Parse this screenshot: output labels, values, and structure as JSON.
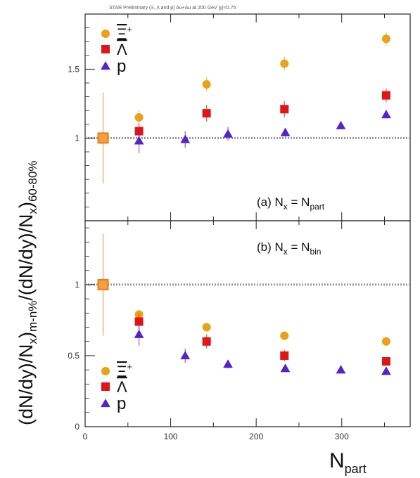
{
  "header": "STAR Preliminary (Ξ, Λ and p) Au+Au at 200 GeV |y|<0.75",
  "chart_data": [
    {
      "type": "scatter",
      "panel": "a",
      "label_main": "(a)  N",
      "label_sub1": "x",
      "label_eq": " = N",
      "label_sub2": "part",
      "ylim": [
        0.4,
        1.9
      ],
      "xlim": [
        0,
        380
      ],
      "y_ticks": [
        "1",
        "1.5"
      ],
      "y_tick_values": [
        1,
        1.5
      ],
      "reference_line": 1,
      "legend": {
        "xi": {
          "main": "Ξ",
          "sup": "+"
        },
        "lambda": {
          "main": "Λ"
        },
        "p": {
          "main": "p"
        }
      },
      "series": [
        {
          "key": "xi",
          "color": "#e8a317",
          "marker": "circle",
          "x": [
            63,
            142,
            233,
            352
          ],
          "y": [
            1.15,
            1.39,
            1.54,
            1.72
          ],
          "err": [
            0.05,
            0.05,
            0.05,
            0.05
          ]
        },
        {
          "key": "lambda",
          "color": "#e01515",
          "marker": "square",
          "x": [
            63,
            142,
            233,
            352
          ],
          "y": [
            1.05,
            1.18,
            1.21,
            1.31
          ],
          "err": [
            0.06,
            0.06,
            0.06,
            0.05
          ]
        },
        {
          "key": "p",
          "color": "#5522cc",
          "marker": "triangle",
          "x": [
            63,
            117,
            167,
            234,
            299,
            352
          ],
          "y": [
            0.98,
            0.99,
            1.03,
            1.04,
            1.09,
            1.17
          ],
          "err": [
            0.09,
            0.06,
            0.05,
            0.03,
            0.02,
            0.02
          ]
        },
        {
          "key": "ref",
          "color": "#e87c1a",
          "marker": "open-square",
          "x": [
            21
          ],
          "y": [
            1.0
          ],
          "err": [
            0.33
          ]
        }
      ]
    },
    {
      "type": "scatter",
      "panel": "b",
      "label_main": "(b)  N",
      "label_sub1": "x",
      "label_eq": " = N",
      "label_sub2": "bin",
      "ylim": [
        0,
        1.45
      ],
      "xlim": [
        0,
        380
      ],
      "x_ticks": [
        "0",
        "100",
        "200",
        "300"
      ],
      "x_tick_values": [
        0,
        100,
        200,
        300
      ],
      "y_ticks": [
        "0",
        "0.5",
        "1"
      ],
      "y_tick_values": [
        0,
        0.5,
        1
      ],
      "reference_line": 1,
      "legend": {
        "xi": {
          "main": "Ξ",
          "sup": "+"
        },
        "lambda": {
          "main": "Λ"
        },
        "p": {
          "main": "p"
        }
      },
      "series": [
        {
          "key": "xi",
          "color": "#e8a317",
          "marker": "circle",
          "x": [
            63,
            142,
            233,
            352
          ],
          "y": [
            0.79,
            0.7,
            0.64,
            0.6
          ],
          "err": [
            0.03,
            0.03,
            0.03,
            0.03
          ]
        },
        {
          "key": "lambda",
          "color": "#e01515",
          "marker": "square",
          "x": [
            63,
            142,
            233,
            352
          ],
          "y": [
            0.74,
            0.6,
            0.5,
            0.46
          ],
          "err": [
            0.06,
            0.05,
            0.04,
            0.03
          ]
        },
        {
          "key": "p",
          "color": "#5522cc",
          "marker": "triangle",
          "x": [
            63,
            117,
            167,
            234,
            299,
            352
          ],
          "y": [
            0.65,
            0.5,
            0.44,
            0.41,
            0.4,
            0.39
          ],
          "err": [
            0.08,
            0.05,
            0.03,
            0.02,
            0.02,
            0.02
          ]
        },
        {
          "key": "ref",
          "color": "#e87c1a",
          "marker": "open-square",
          "x": [
            21
          ],
          "y": [
            1.0
          ],
          "err": [
            0.36
          ]
        }
      ]
    }
  ],
  "axes": {
    "ylabel_main": "(dN/dy)/N",
    "ylabel_sub_a": "x",
    "ylabel_mid": ")",
    "ylabel_sub_b": "m-n%",
    "ylabel_tail": "/(dN/dy)/N",
    "ylabel_sub_c": "x",
    "ylabel_end": ")",
    "ylabel_sub_d": "60-80%",
    "xlabel_main": "N",
    "xlabel_sub": "part"
  }
}
